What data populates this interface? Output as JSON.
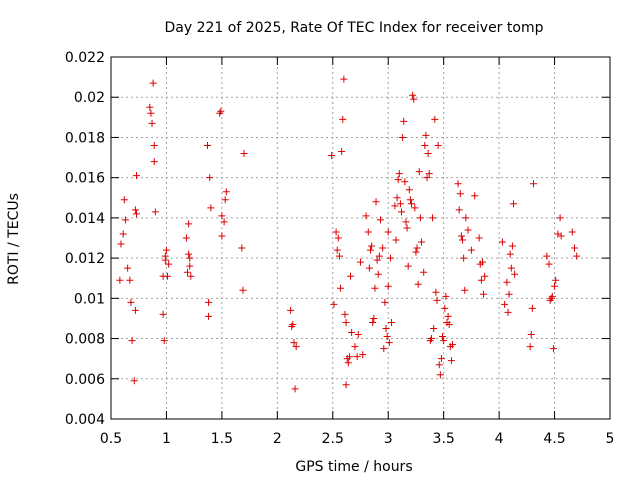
{
  "chart_data": {
    "type": "scatter",
    "title": "Day 221 of 2025, Rate Of TEC Index for receiver tomp",
    "xlabel": "GPS time / hours",
    "ylabel": "ROTI / TECUs",
    "xlim": [
      0.5,
      5
    ],
    "ylim": [
      0.004,
      0.022
    ],
    "xticks": [
      0.5,
      1,
      1.5,
      2,
      2.5,
      3,
      3.5,
      4,
      4.5,
      5
    ],
    "xtick_labels": [
      "0.5",
      "1",
      "1.5",
      "2",
      "2.5",
      "3",
      "3.5",
      "4",
      "4.5",
      "5"
    ],
    "yticks": [
      0.004,
      0.006,
      0.008,
      0.01,
      0.012,
      0.014,
      0.016,
      0.018,
      0.02,
      0.022
    ],
    "ytick_labels": [
      "0.004",
      "0.006",
      "0.008",
      "0.01",
      "0.012",
      "0.014",
      "0.016",
      "0.018",
      "0.02",
      "0.022"
    ],
    "grid": true,
    "marker": "+",
    "color": "#dd0000",
    "series": [
      {
        "name": "ROTI",
        "x": [
          0.58,
          0.59,
          0.61,
          0.62,
          0.63,
          0.65,
          0.67,
          0.68,
          0.69,
          0.71,
          0.72,
          0.72,
          0.73,
          0.73,
          0.85,
          0.86,
          0.87,
          0.88,
          0.89,
          0.89,
          0.9,
          0.97,
          0.97,
          0.98,
          0.99,
          0.99,
          1.0,
          1.01,
          1.02,
          1.18,
          1.19,
          1.2,
          1.2,
          1.21,
          1.21,
          1.22,
          1.37,
          1.38,
          1.38,
          1.39,
          1.4,
          1.48,
          1.49,
          1.5,
          1.5,
          1.52,
          1.53,
          1.54,
          1.68,
          1.69,
          1.7,
          2.12,
          2.13,
          2.14,
          2.15,
          2.16,
          2.17,
          2.49,
          2.51,
          2.53,
          2.54,
          2.55,
          2.56,
          2.57,
          2.58,
          2.59,
          2.6,
          2.61,
          2.62,
          2.62,
          2.63,
          2.64,
          2.65,
          2.66,
          2.67,
          2.7,
          2.72,
          2.73,
          2.75,
          2.77,
          2.8,
          2.82,
          2.83,
          2.84,
          2.85,
          2.86,
          2.87,
          2.88,
          2.89,
          2.9,
          2.91,
          2.92,
          2.93,
          2.95,
          2.96,
          2.97,
          2.98,
          2.99,
          3.0,
          3.0,
          3.01,
          3.02,
          3.03,
          3.06,
          3.07,
          3.08,
          3.09,
          3.1,
          3.11,
          3.12,
          3.13,
          3.14,
          3.15,
          3.16,
          3.17,
          3.18,
          3.19,
          3.2,
          3.21,
          3.22,
          3.23,
          3.24,
          3.25,
          3.26,
          3.27,
          3.28,
          3.29,
          3.3,
          3.32,
          3.33,
          3.34,
          3.35,
          3.36,
          3.37,
          3.38,
          3.39,
          3.4,
          3.41,
          3.42,
          3.43,
          3.44,
          3.45,
          3.46,
          3.47,
          3.48,
          3.49,
          3.5,
          3.51,
          3.52,
          3.53,
          3.54,
          3.55,
          3.56,
          3.57,
          3.58,
          3.63,
          3.64,
          3.65,
          3.66,
          3.67,
          3.68,
          3.69,
          3.7,
          3.72,
          3.75,
          3.78,
          3.82,
          3.83,
          3.84,
          3.85,
          3.86,
          3.87,
          4.03,
          4.05,
          4.07,
          4.08,
          4.09,
          4.1,
          4.11,
          4.12,
          4.13,
          4.14,
          4.28,
          4.29,
          4.3,
          4.31,
          4.43,
          4.45,
          4.46,
          4.47,
          4.48,
          4.49,
          4.5,
          4.51,
          4.53,
          4.55,
          4.56,
          4.66,
          4.68,
          4.7
        ],
        "y": [
          0.0109,
          0.0127,
          0.0132,
          0.0149,
          0.0139,
          0.0115,
          0.0109,
          0.0098,
          0.0079,
          0.0059,
          0.0094,
          0.0144,
          0.0142,
          0.0161,
          0.0195,
          0.0192,
          0.0187,
          0.0207,
          0.0176,
          0.0168,
          0.0143,
          0.0111,
          0.0092,
          0.0079,
          0.0121,
          0.0119,
          0.0124,
          0.0111,
          0.0117,
          0.013,
          0.0113,
          0.0122,
          0.0137,
          0.012,
          0.0116,
          0.0111,
          0.0176,
          0.0098,
          0.0091,
          0.016,
          0.0145,
          0.0192,
          0.0193,
          0.0131,
          0.0141,
          0.0138,
          0.0149,
          0.0153,
          0.0125,
          0.0104,
          0.0172,
          0.0094,
          0.0086,
          0.0087,
          0.0078,
          0.0055,
          0.0076,
          0.0171,
          0.0097,
          0.0133,
          0.0124,
          0.013,
          0.0121,
          0.0105,
          0.0173,
          0.0189,
          0.0209,
          0.0092,
          0.0088,
          0.0057,
          0.007,
          0.0068,
          0.0071,
          0.0111,
          0.0083,
          0.0076,
          0.0071,
          0.0082,
          0.0118,
          0.0072,
          0.0141,
          0.0133,
          0.0115,
          0.0124,
          0.0126,
          0.0088,
          0.009,
          0.0105,
          0.0148,
          0.0119,
          0.0112,
          0.0121,
          0.0139,
          0.0125,
          0.0075,
          0.0098,
          0.0085,
          0.0081,
          0.0133,
          0.0106,
          0.0078,
          0.012,
          0.0088,
          0.0146,
          0.0129,
          0.015,
          0.0159,
          0.0162,
          0.0147,
          0.0143,
          0.018,
          0.0188,
          0.0158,
          0.0138,
          0.0135,
          0.0116,
          0.0154,
          0.0149,
          0.0147,
          0.0201,
          0.0199,
          0.0145,
          0.0123,
          0.0125,
          0.0107,
          0.0163,
          0.014,
          0.0128,
          0.0113,
          0.0176,
          0.0181,
          0.016,
          0.0172,
          0.0162,
          0.0079,
          0.008,
          0.014,
          0.0085,
          0.0189,
          0.0103,
          0.0099,
          0.0176,
          0.0067,
          0.0062,
          0.007,
          0.0081,
          0.0079,
          0.0095,
          0.0101,
          0.0088,
          0.0091,
          0.0087,
          0.0076,
          0.0069,
          0.0077,
          0.0157,
          0.0144,
          0.0152,
          0.0131,
          0.0129,
          0.012,
          0.0104,
          0.014,
          0.0134,
          0.0124,
          0.0151,
          0.013,
          0.0117,
          0.0109,
          0.0118,
          0.0102,
          0.0111,
          0.0128,
          0.0097,
          0.0108,
          0.0093,
          0.0102,
          0.0122,
          0.0115,
          0.0126,
          0.0147,
          0.0112,
          0.0076,
          0.0082,
          0.0095,
          0.0157,
          0.0121,
          0.0117,
          0.0099,
          0.01,
          0.0101,
          0.0075,
          0.0106,
          0.0109,
          0.0132,
          0.014,
          0.0131,
          0.0133,
          0.0125,
          0.0121
        ]
      }
    ]
  }
}
